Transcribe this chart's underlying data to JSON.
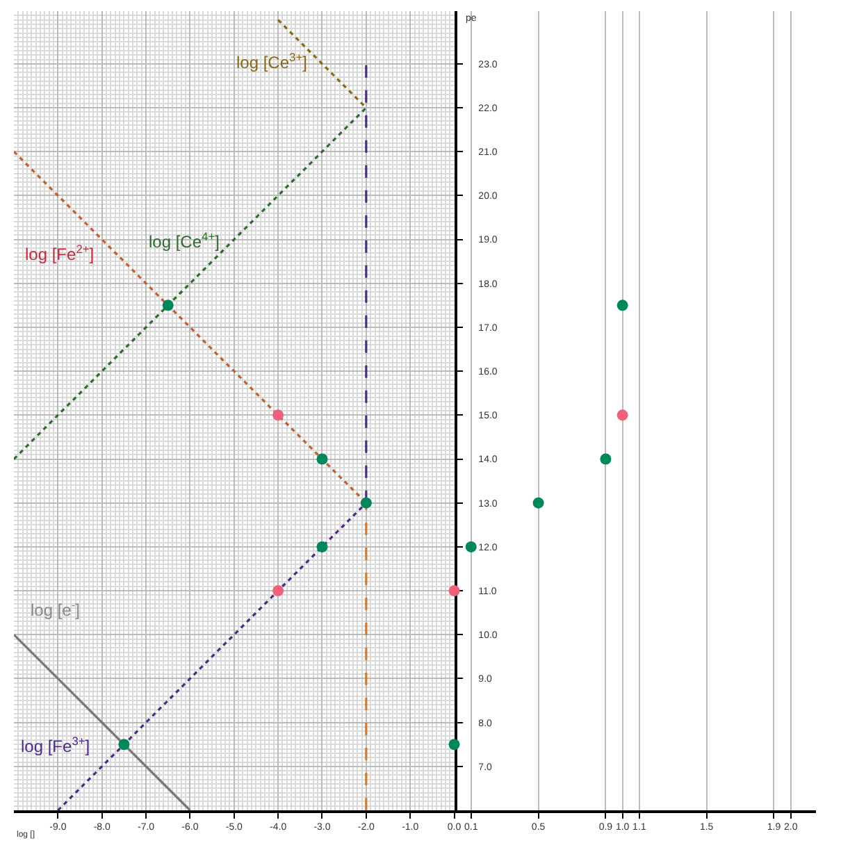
{
  "chart_data": [
    {
      "type": "line",
      "xlabel": "log []",
      "ylabel": "pe",
      "xlim": [
        -10,
        0
      ],
      "xticks": [
        {
          "value": -9,
          "label": "-9.0"
        },
        {
          "value": -8,
          "label": "-8.0"
        },
        {
          "value": -7,
          "label": "-7.0"
        },
        {
          "value": -6,
          "label": "-6.0"
        },
        {
          "value": -5,
          "label": "-5.0"
        },
        {
          "value": -4,
          "label": "-4.0"
        },
        {
          "value": -3,
          "label": "-3.0"
        },
        {
          "value": -2,
          "label": "-2.0"
        },
        {
          "value": -1,
          "label": "-1.0"
        },
        {
          "value": 0,
          "label": "0.0"
        }
      ],
      "ylim": [
        6,
        24.2
      ],
      "yticks": [
        {
          "value": 7,
          "label": "7.0"
        },
        {
          "value": 8,
          "label": "8.0"
        },
        {
          "value": 9,
          "label": "9.0"
        },
        {
          "value": 10,
          "label": "10.0"
        },
        {
          "value": 11,
          "label": "11.0"
        },
        {
          "value": 12,
          "label": "12.0"
        },
        {
          "value": 13,
          "label": "13.0"
        },
        {
          "value": 14,
          "label": "14.0"
        },
        {
          "value": 15,
          "label": "15.0"
        },
        {
          "value": 16,
          "label": "16.0"
        },
        {
          "value": 17,
          "label": "17.0"
        },
        {
          "value": 18,
          "label": "18.0"
        },
        {
          "value": 19,
          "label": "19.0"
        },
        {
          "value": 20,
          "label": "20.0"
        },
        {
          "value": 21,
          "label": "21.0"
        },
        {
          "value": 22,
          "label": "22.0"
        },
        {
          "value": 23,
          "label": "23.0"
        }
      ],
      "grid": true,
      "marker": "none",
      "series": [
        {
          "type": "line",
          "color": "#8b6914",
          "line_style": "dotted",
          "x": [
            -4,
            -2
          ],
          "values": [
            24,
            22
          ]
        },
        {
          "type": "line",
          "color": "#2e6b2e",
          "line_style": "dotted",
          "x": [
            -10,
            -2
          ],
          "values": [
            14,
            22
          ]
        },
        {
          "type": "line",
          "color": "#c0602a",
          "line_style": "dotted",
          "x": [
            -10,
            -2
          ],
          "values": [
            21,
            13
          ]
        },
        {
          "type": "line",
          "color": "#4b2a8a",
          "line_style": "dotted",
          "x": [
            -9,
            -2
          ],
          "values": [
            6,
            13
          ]
        },
        {
          "type": "line",
          "color": "#777777",
          "line_style": "solid",
          "x": [
            -10,
            -6
          ],
          "values": [
            10,
            6
          ]
        },
        {
          "type": "line",
          "color": "#4b2a8a",
          "line_style": "dashed",
          "x": [
            -2,
            -2
          ],
          "values": [
            13,
            23
          ]
        },
        {
          "type": "line",
          "color": "#e07820",
          "line_style": "dashed",
          "x": [
            -2,
            -2
          ],
          "values": [
            6,
            13
          ]
        },
        {
          "type": "scatter",
          "color": "#00875a",
          "marker": "circle",
          "x": [
            -6.5,
            -3,
            -2,
            -3,
            -7.5
          ],
          "values": [
            17.5,
            14,
            13,
            12,
            7.5
          ]
        },
        {
          "type": "scatter",
          "color": "#f0607a",
          "marker": "circle",
          "x": [
            -4,
            -4
          ],
          "values": [
            15,
            11
          ]
        }
      ],
      "annotations": [
        "log [Ce$^{3+}$]",
        "log [Ce$^{4+}$]",
        "log [Fe$^{2+}$]",
        "log [e$^{-}$]",
        "log [Fe$^{3+}$]"
      ]
    },
    {
      "type": "scatter",
      "xlim": [
        0,
        2.15
      ],
      "xticks": [
        0.1,
        0.5,
        0.9,
        {
          "value": 1.0,
          "label": "1.0"
        },
        1.1,
        1.5,
        1.9,
        {
          "value": 2.0,
          "label": "2.0"
        }
      ],
      "ylim": [
        6,
        24.2
      ],
      "tick_labels": "x",
      "grid": "x",
      "marker": "circle",
      "series": [
        {
          "color": "#00875a",
          "x": [
            1.0,
            0.9,
            0.5,
            0.1,
            0.0
          ],
          "values": [
            17.5,
            14,
            13,
            12,
            7.5
          ]
        },
        {
          "color": "#f0607a",
          "x": [
            1.0,
            0.0
          ],
          "values": [
            15,
            11
          ]
        }
      ]
    }
  ]
}
